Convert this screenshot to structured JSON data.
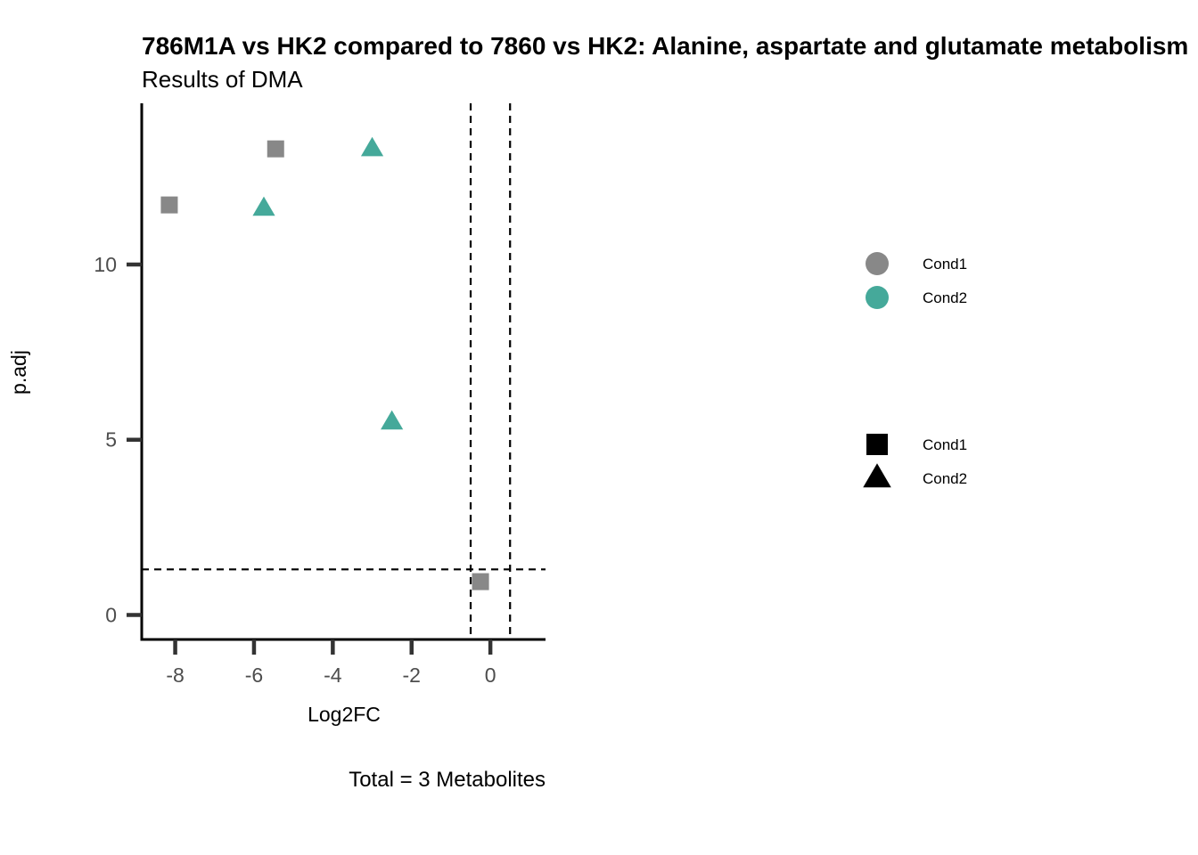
{
  "chart_data": {
    "type": "scatter",
    "title": "786M1A vs HK2 compared to 7860 vs HK2: Alanine, aspartate and glutamate metabolism",
    "subtitle": "Results of DMA",
    "xlabel": "Log2FC",
    "ylabel": "p.adj",
    "caption": "Total = 3 Metabolites",
    "xlim": [
      -8.85,
      1.4
    ],
    "ylim": [
      -0.7,
      14.6
    ],
    "xticks": [
      -8,
      -6,
      -4,
      -2,
      0
    ],
    "xtick_labels": [
      "-8",
      "-6",
      "-4",
      "-2",
      "0"
    ],
    "yticks": [
      0,
      5,
      10
    ],
    "ytick_labels": [
      "0",
      "5",
      "10"
    ],
    "reference_lines": {
      "vertical": [
        -0.5,
        0.5
      ],
      "horizontal": [
        1.3
      ],
      "style": "dashed"
    },
    "grid": false,
    "series": [
      {
        "name": "Cond1",
        "color": "#888888",
        "shape": "square",
        "points": [
          {
            "x": -5.45,
            "y": 13.3
          },
          {
            "x": -8.15,
            "y": 11.7
          },
          {
            "x": -0.25,
            "y": 0.95
          }
        ]
      },
      {
        "name": "Cond2",
        "color": "#45A99A",
        "shape": "triangle",
        "points": [
          {
            "x": -3.0,
            "y": 13.3
          },
          {
            "x": -5.75,
            "y": 11.6
          },
          {
            "x": -2.5,
            "y": 5.5
          }
        ]
      }
    ],
    "legends": [
      {
        "kind": "color",
        "placement": "right",
        "entries": [
          {
            "label": "Cond1",
            "color": "#888888",
            "shape": "circle"
          },
          {
            "label": "Cond2",
            "color": "#45A99A",
            "shape": "circle"
          }
        ]
      },
      {
        "kind": "shape",
        "placement": "right",
        "entries": [
          {
            "label": "Cond1",
            "color": "#000000",
            "shape": "square"
          },
          {
            "label": "Cond2",
            "color": "#000000",
            "shape": "triangle"
          }
        ]
      }
    ]
  }
}
